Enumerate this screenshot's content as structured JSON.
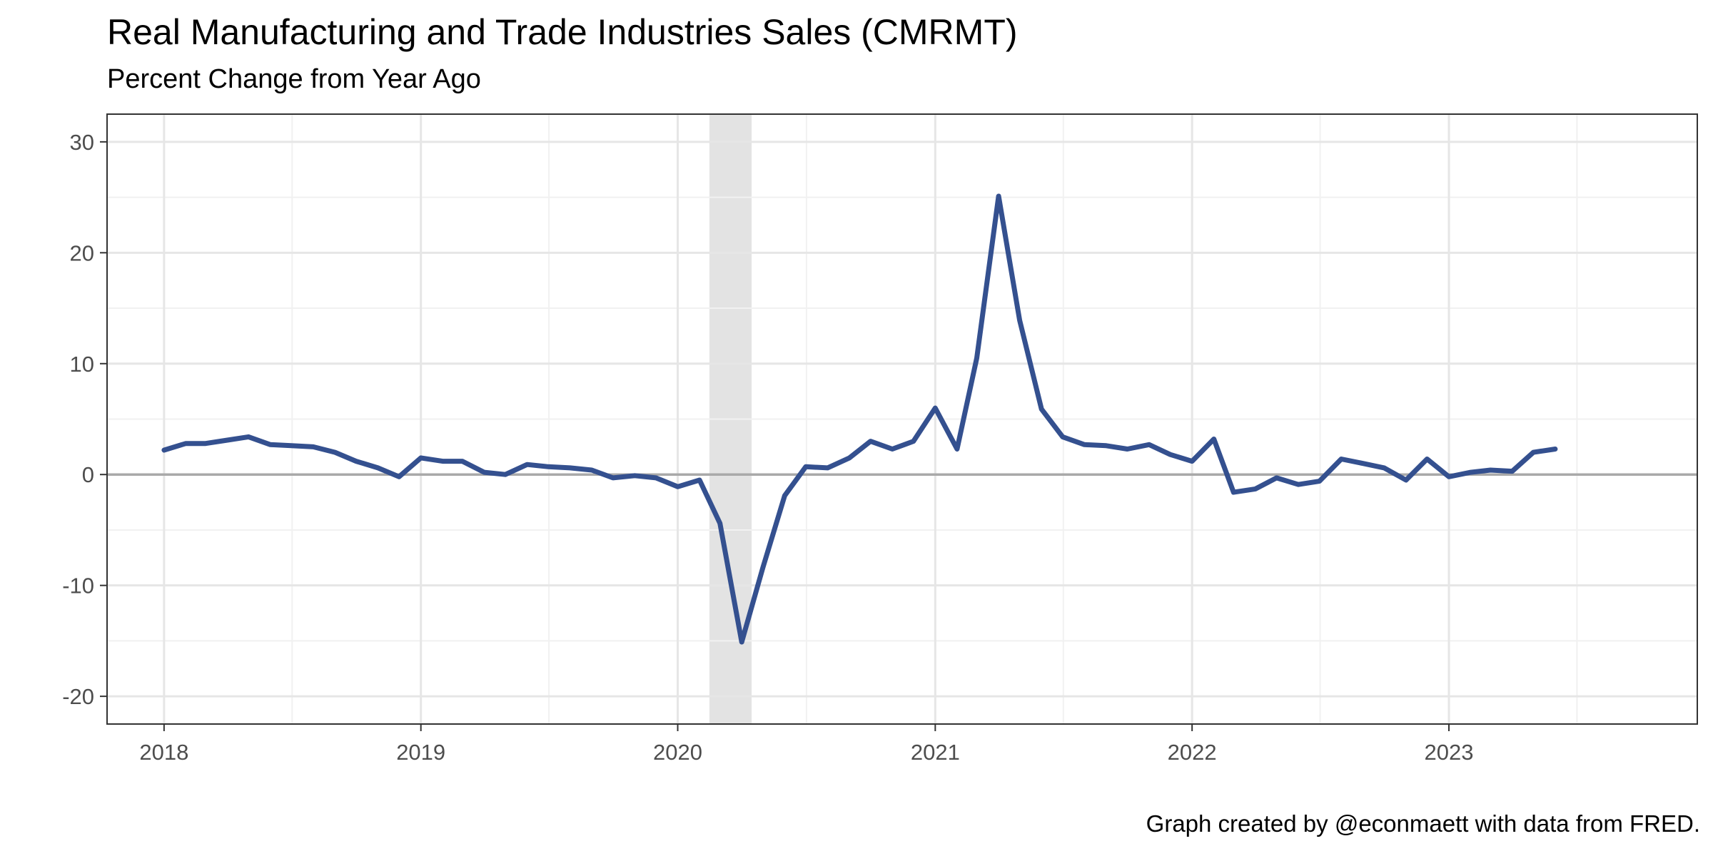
{
  "chart_data": {
    "type": "line",
    "title": "Real Manufacturing and Trade Industries Sales (CMRMT)",
    "subtitle": "Percent Change from Year Ago",
    "caption": "Graph created by @econmaett with data from FRED.",
    "xlabel": "",
    "ylabel": "",
    "x_range": [
      "2017-10-12",
      "2023-12-20"
    ],
    "ylim": [
      -22.5,
      32.5
    ],
    "y_ticks": [
      -20,
      -10,
      0,
      10,
      20,
      30
    ],
    "x_ticks": [
      {
        "date": "2018-01-01",
        "label": "2018"
      },
      {
        "date": "2019-01-01",
        "label": "2019"
      },
      {
        "date": "2020-01-01",
        "label": "2020"
      },
      {
        "date": "2021-01-01",
        "label": "2021"
      },
      {
        "date": "2022-01-01",
        "label": "2022"
      },
      {
        "date": "2023-01-01",
        "label": "2023"
      }
    ],
    "grid": true,
    "zero_line": true,
    "recession_band": {
      "start": "2020-02-15",
      "end": "2020-04-15",
      "color": "#e3e3e3"
    },
    "series": [
      {
        "color": "#34508f",
        "x": [
          "2018-01",
          "2018-02",
          "2018-03",
          "2018-04",
          "2018-05",
          "2018-06",
          "2018-07",
          "2018-08",
          "2018-09",
          "2018-10",
          "2018-11",
          "2018-12",
          "2019-01",
          "2019-02",
          "2019-03",
          "2019-04",
          "2019-05",
          "2019-06",
          "2019-07",
          "2019-08",
          "2019-09",
          "2019-10",
          "2019-11",
          "2019-12",
          "2020-01",
          "2020-02",
          "2020-03",
          "2020-04",
          "2020-05",
          "2020-06",
          "2020-07",
          "2020-08",
          "2020-09",
          "2020-10",
          "2020-11",
          "2020-12",
          "2021-01",
          "2021-02",
          "2021-03",
          "2021-04",
          "2021-05",
          "2021-06",
          "2021-07",
          "2021-08",
          "2021-09",
          "2021-10",
          "2021-11",
          "2021-12",
          "2022-01",
          "2022-02",
          "2022-03",
          "2022-04",
          "2022-05",
          "2022-06",
          "2022-07",
          "2022-08",
          "2022-09",
          "2022-10",
          "2022-11",
          "2022-12",
          "2023-01",
          "2023-02",
          "2023-03",
          "2023-04",
          "2023-05",
          "2023-06"
        ],
        "values": [
          2.2,
          2.8,
          2.8,
          3.1,
          3.4,
          2.7,
          2.6,
          2.5,
          2.0,
          1.2,
          0.6,
          -0.2,
          1.5,
          1.2,
          1.2,
          0.2,
          0.0,
          0.9,
          0.7,
          0.6,
          0.4,
          -0.3,
          -0.1,
          -0.3,
          -1.1,
          -0.5,
          -4.4,
          -15.1,
          -8.4,
          -1.9,
          0.7,
          0.6,
          1.5,
          3.0,
          2.3,
          3.0,
          6.0,
          2.3,
          10.5,
          25.1,
          13.9,
          5.9,
          3.4,
          2.7,
          2.6,
          2.3,
          2.7,
          1.8,
          1.2,
          3.2,
          -1.6,
          -1.3,
          -0.3,
          -0.9,
          -0.6,
          1.4,
          1.0,
          0.6,
          -0.5,
          1.4,
          -0.2,
          0.2,
          0.4,
          0.3,
          2.0,
          2.3
        ]
      }
    ]
  }
}
